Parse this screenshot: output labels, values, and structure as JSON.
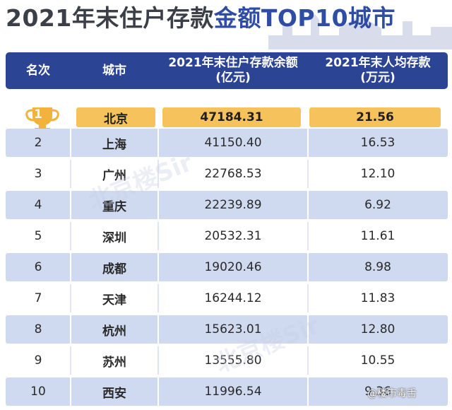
{
  "title": {
    "prefix": "2021年末住户存款",
    "highlight": "金额TOP10城市"
  },
  "watermark": "北京楼Sir",
  "source": "@楼市毒舌",
  "chart_data": {
    "type": "table",
    "title": "2021年末住户存款金额TOP10城市",
    "columns": [
      "名次",
      "城市",
      "2021年末住户存款余额\n(亿元)",
      "2021年末人均存款\n(万元)"
    ],
    "rows": [
      {
        "rank": "1",
        "city": "北京",
        "deposit": "47184.31",
        "per_capita": "21.56"
      },
      {
        "rank": "2",
        "city": "上海",
        "deposit": "41150.40",
        "per_capita": "16.53"
      },
      {
        "rank": "3",
        "city": "广州",
        "deposit": "22768.53",
        "per_capita": "12.10"
      },
      {
        "rank": "4",
        "city": "重庆",
        "deposit": "22239.89",
        "per_capita": "6.92"
      },
      {
        "rank": "5",
        "city": "深圳",
        "deposit": "20532.31",
        "per_capita": "11.61"
      },
      {
        "rank": "6",
        "city": "成都",
        "deposit": "19020.46",
        "per_capita": "8.98"
      },
      {
        "rank": "7",
        "city": "天津",
        "deposit": "16244.12",
        "per_capita": "11.83"
      },
      {
        "rank": "8",
        "city": "杭州",
        "deposit": "15623.01",
        "per_capita": "12.80"
      },
      {
        "rank": "9",
        "city": "苏州",
        "deposit": "13555.80",
        "per_capita": "10.55"
      },
      {
        "rank": "10",
        "city": "西安",
        "deposit": "11996.54",
        "per_capita": "9.36"
      }
    ]
  },
  "colors": {
    "header": "#2c4494",
    "stripe": "#cfd9ef",
    "gold": "#f6c25c",
    "title_highlight": "#2f4da5"
  }
}
